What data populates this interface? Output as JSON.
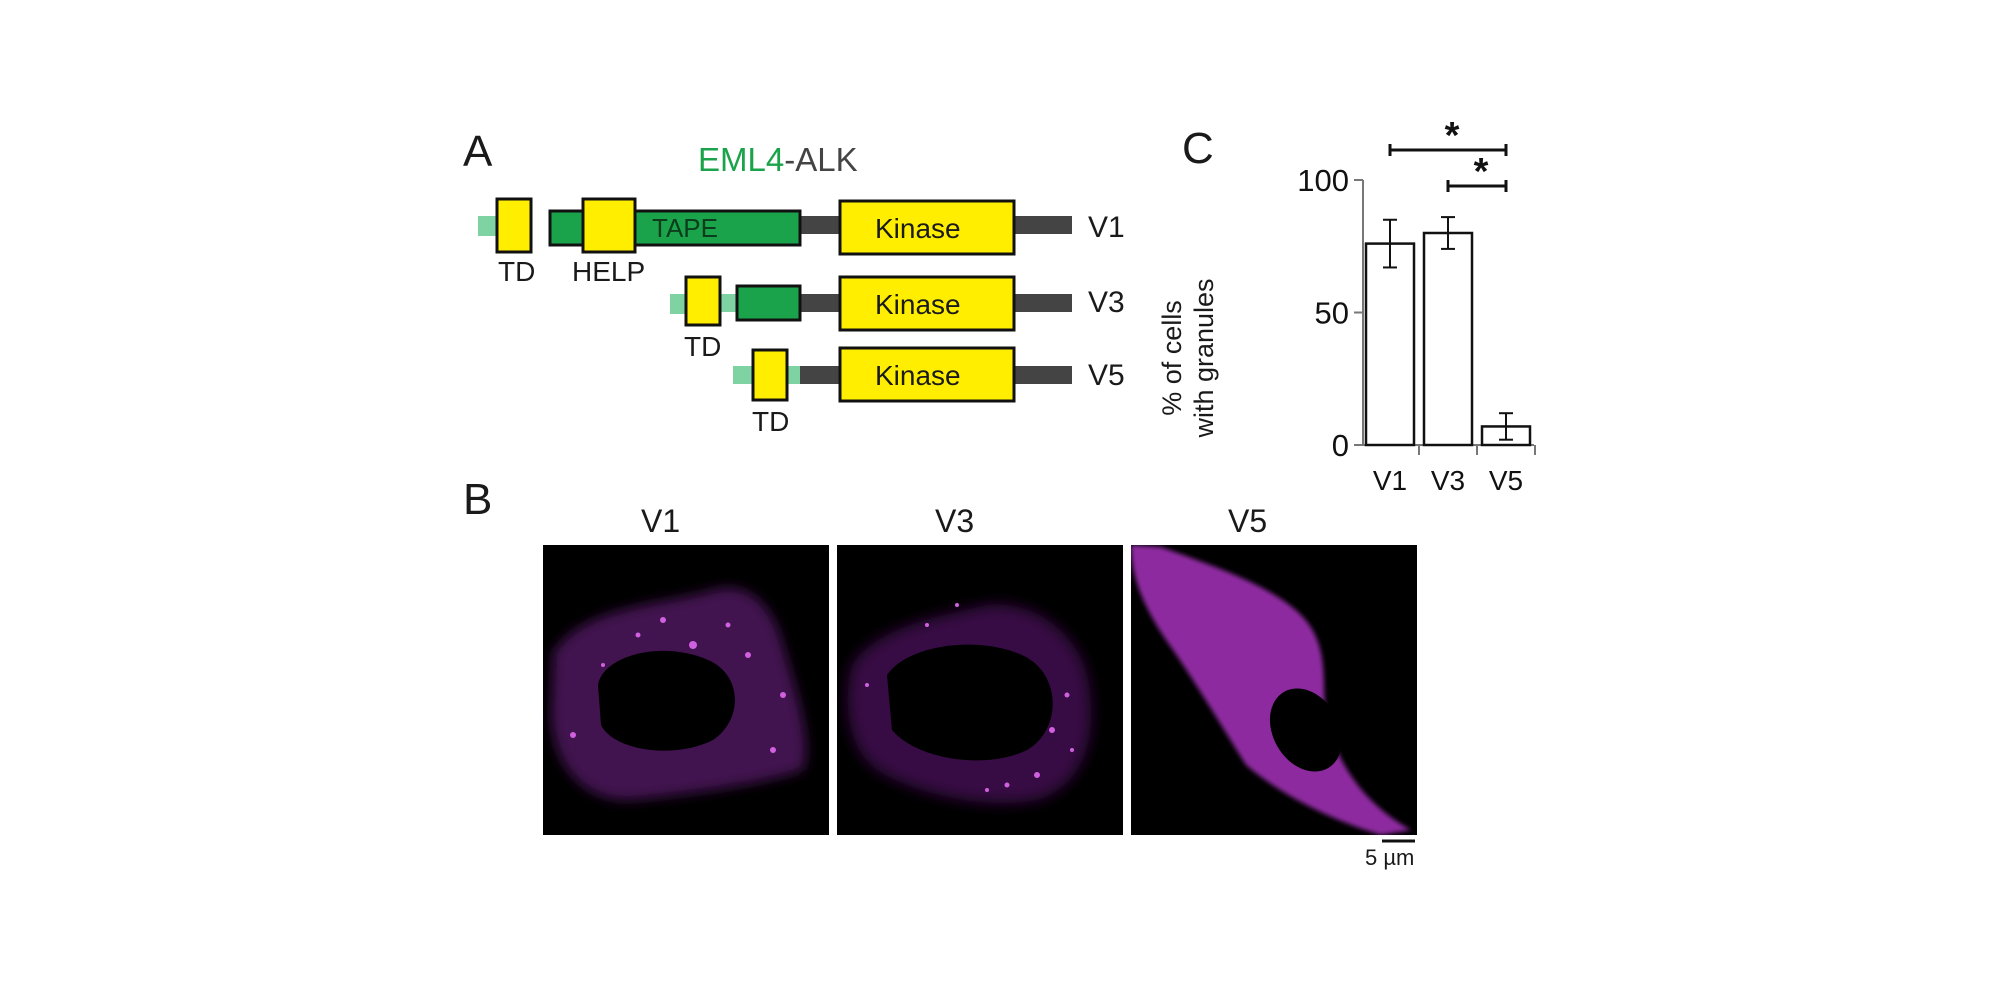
{
  "panel_a": {
    "letter": "A",
    "title_part1": "EML4",
    "title_sep": "-",
    "title_part2": "ALK",
    "colors": {
      "eml4": "#1aa34a",
      "alk": "#444444",
      "domain": "#ffee00",
      "light_green": "#7fd3a3"
    },
    "constructs": [
      {
        "name": "V1",
        "td_label": "TD",
        "help_label": "HELP",
        "tape_label": "TAPE",
        "kinase_label": "Kinase"
      },
      {
        "name": "V3",
        "td_label": "TD",
        "kinase_label": "Kinase"
      },
      {
        "name": "V5",
        "td_label": "TD",
        "kinase_label": "Kinase"
      }
    ]
  },
  "panel_b": {
    "letter": "B",
    "images": [
      {
        "label": "V1"
      },
      {
        "label": "V3"
      },
      {
        "label": "V5"
      }
    ],
    "scale_bar": "5 µm",
    "stain_color": "#b030c0"
  },
  "panel_c": {
    "letter": "C",
    "significance_symbol": "*"
  },
  "chart_data": {
    "type": "bar",
    "categories": [
      "V1",
      "V3",
      "V5"
    ],
    "values": [
      76,
      80,
      7
    ],
    "errors": [
      9,
      6,
      5
    ],
    "ylabel_line1": "% of cells",
    "ylabel_line2": "with granules",
    "ylim": [
      0,
      100
    ],
    "yticks": [
      0,
      50,
      100
    ],
    "grid": false,
    "significance": [
      {
        "from": "V1",
        "to": "V5",
        "symbol": "*"
      },
      {
        "from": "V3",
        "to": "V5",
        "symbol": "*"
      }
    ]
  }
}
